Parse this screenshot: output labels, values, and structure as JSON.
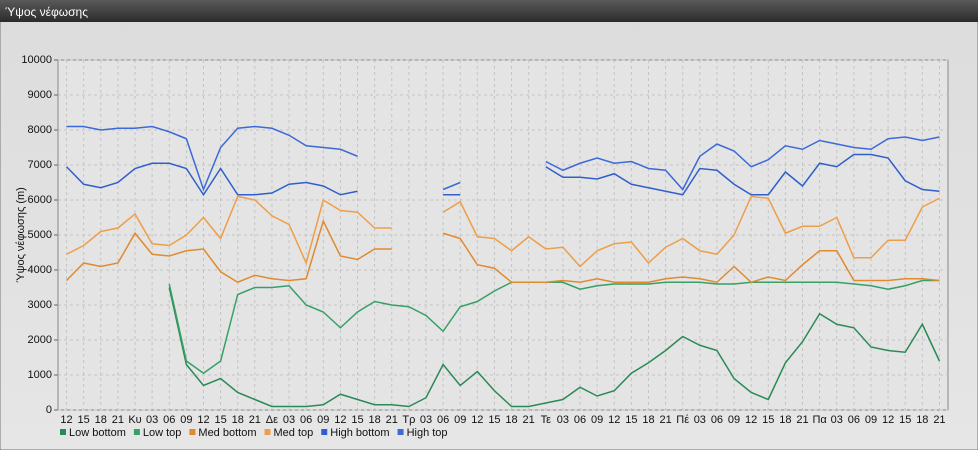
{
  "chart_data": {
    "type": "line",
    "title": "Ύψος νέφωσης",
    "y_label": "Ύψος νέφωσης (m)",
    "categories": [
      "12",
      "15",
      "18",
      "21",
      "Κυ",
      "03",
      "06",
      "09",
      "12",
      "15",
      "18",
      "21",
      "Δε",
      "03",
      "06",
      "09",
      "12",
      "15",
      "18",
      "21",
      "Τρ",
      "03",
      "06",
      "09",
      "12",
      "15",
      "18",
      "21",
      "Τε",
      "03",
      "06",
      "09",
      "12",
      "15",
      "18",
      "21",
      "Πέ",
      "03",
      "06",
      "09",
      "12",
      "15",
      "18",
      "21",
      "Πα",
      "03",
      "06",
      "09",
      "12",
      "15",
      "18",
      "21"
    ],
    "ylim": [
      0,
      10000
    ],
    "yticks": [
      0,
      1000,
      2000,
      3000,
      4000,
      5000,
      6000,
      7000,
      8000,
      9000,
      10000
    ],
    "grid": true,
    "series": [
      {
        "name": "Low bottom",
        "color": "#2a8a55",
        "values": [
          null,
          null,
          null,
          null,
          null,
          null,
          3500,
          1300,
          700,
          900,
          500,
          300,
          100,
          100,
          100,
          150,
          450,
          300,
          150,
          150,
          100,
          350,
          1300,
          700,
          1100,
          550,
          100,
          100,
          200,
          300,
          650,
          400,
          550,
          1050,
          1350,
          1700,
          2100,
          1850,
          1700,
          900,
          500,
          300,
          1350,
          1950,
          2750,
          2450,
          2350,
          1800,
          1700,
          1650,
          2450,
          1400
        ]
      },
      {
        "name": "Low top",
        "color": "#36a066",
        "values": [
          null,
          null,
          null,
          null,
          null,
          null,
          3600,
          1400,
          1050,
          1400,
          3300,
          3500,
          3500,
          3550,
          3000,
          2800,
          2350,
          2800,
          3100,
          3000,
          2950,
          2700,
          2250,
          2950,
          3100,
          3400,
          3650,
          3650,
          3650,
          3650,
          3450,
          3550,
          3600,
          3600,
          3600,
          3650,
          3650,
          3650,
          3600,
          3600,
          3650,
          3650,
          3650,
          3650,
          3650,
          3650,
          3600,
          3550,
          3450,
          3550,
          3700,
          3700
        ]
      },
      {
        "name": "Med bottom",
        "color": "#e08a30",
        "values": [
          3700,
          4200,
          4100,
          4200,
          5050,
          4450,
          4400,
          4550,
          4600,
          3950,
          3650,
          3850,
          3750,
          3700,
          3750,
          5400,
          4400,
          4300,
          4600,
          4600,
          null,
          null,
          5050,
          4900,
          4150,
          4050,
          3650,
          3650,
          3650,
          3700,
          3650,
          3750,
          3650,
          3650,
          3650,
          3750,
          3800,
          3750,
          3650,
          4100,
          3650,
          3800,
          3700,
          4150,
          4550,
          4550,
          3700,
          3700,
          3700,
          3750,
          3750,
          3700
        ]
      },
      {
        "name": "Med top",
        "color": "#ee9e48",
        "values": [
          4450,
          4700,
          5100,
          5200,
          5600,
          4750,
          4700,
          5000,
          5500,
          4900,
          6100,
          6000,
          5550,
          5300,
          4200,
          6000,
          5700,
          5650,
          5200,
          5200,
          null,
          null,
          5650,
          5950,
          4950,
          4900,
          4550,
          4950,
          4600,
          4650,
          4100,
          4550,
          4750,
          4800,
          4200,
          4650,
          4900,
          4550,
          4450,
          5000,
          6100,
          6050,
          5050,
          5250,
          5250,
          5500,
          4350,
          4350,
          4850,
          4850,
          5800,
          6050
        ]
      },
      {
        "name": "High bottom",
        "color": "#2f5fcc",
        "values": [
          6950,
          6450,
          6350,
          6500,
          6900,
          7050,
          7050,
          6900,
          6150,
          6900,
          6150,
          6150,
          6200,
          6450,
          6500,
          6400,
          6150,
          6250,
          null,
          null,
          null,
          null,
          6150,
          6150,
          null,
          null,
          null,
          null,
          6950,
          6650,
          6650,
          6600,
          6750,
          6450,
          6350,
          6250,
          6150,
          6900,
          6850,
          6450,
          6150,
          6150,
          6800,
          6400,
          7050,
          6950,
          7300,
          7300,
          7200,
          6550,
          6300,
          6250
        ]
      },
      {
        "name": "High top",
        "color": "#3b6ad8",
        "values": [
          8100,
          8100,
          8000,
          8050,
          8050,
          8100,
          7950,
          7750,
          6300,
          7500,
          8050,
          8100,
          8050,
          7850,
          7550,
          7500,
          7450,
          7250,
          null,
          null,
          null,
          null,
          6300,
          6500,
          null,
          null,
          null,
          null,
          7100,
          6850,
          7050,
          7200,
          7050,
          7100,
          6900,
          6850,
          6300,
          7250,
          7600,
          7400,
          6950,
          7150,
          7550,
          7450,
          7700,
          7600,
          7500,
          7450,
          7750,
          7800,
          7700,
          7800
        ]
      }
    ]
  }
}
